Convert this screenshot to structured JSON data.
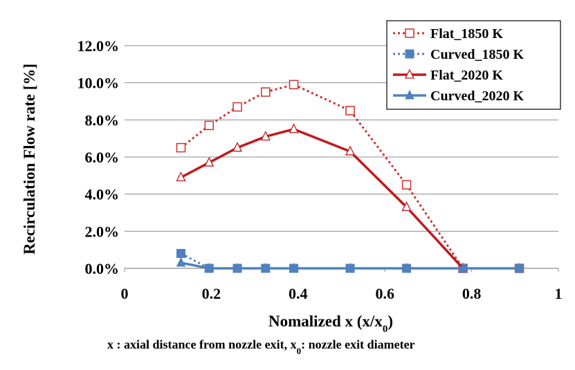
{
  "chart_data": {
    "type": "line",
    "title": "",
    "xlabel": "Nomalized  x (x/x",
    "xlabel_sub": "0",
    "xlabel_suffix": ")",
    "ylabel": "Recirculation  Flow rate  [%]",
    "xlim": [
      0,
      1
    ],
    "ylim": [
      0,
      0.12
    ],
    "x_ticks": [
      0,
      0.2,
      0.4,
      0.6,
      0.8,
      1
    ],
    "x_tick_labels": [
      "0",
      "0.2",
      "0.4",
      "0.6",
      "0.8",
      "1"
    ],
    "y_ticks": [
      0,
      0.02,
      0.04,
      0.06,
      0.08,
      0.1,
      0.12
    ],
    "y_tick_labels": [
      "0.0%",
      "2.0%",
      "4.0%",
      "6.0%",
      "8.0%",
      "10.0%",
      "12.0%"
    ],
    "grid": "horizontal",
    "legend_position": "top-right",
    "series": [
      {
        "name": "Flat_1850 K",
        "color": "#d42d2d",
        "line": "dotted",
        "marker": "open-square",
        "x": [
          0.13,
          0.195,
          0.26,
          0.325,
          0.39,
          0.52,
          0.65,
          0.78,
          0.91
        ],
        "y": [
          0.065,
          0.077,
          0.087,
          0.095,
          0.099,
          0.085,
          0.045,
          0.0,
          0.0
        ]
      },
      {
        "name": "Curved_1850 K",
        "color": "#4f81bd",
        "line": "dotted",
        "marker": "filled-square",
        "x": [
          0.13,
          0.195,
          0.26,
          0.325,
          0.39,
          0.52,
          0.65,
          0.78,
          0.91
        ],
        "y": [
          0.008,
          0.0,
          0.0,
          0.0,
          0.0,
          0.0,
          0.0,
          0.0,
          0.0
        ]
      },
      {
        "name": "Flat_2020 K",
        "color": "#c0191c",
        "line": "solid",
        "marker": "open-triangle",
        "x": [
          0.13,
          0.195,
          0.26,
          0.325,
          0.39,
          0.52,
          0.65,
          0.78
        ],
        "y": [
          0.049,
          0.057,
          0.065,
          0.071,
          0.075,
          0.063,
          0.033,
          0.0
        ]
      },
      {
        "name": "Curved_2020 K",
        "color": "#4f81bd",
        "line": "solid",
        "marker": "filled-triangle",
        "x": [
          0.13,
          0.195,
          0.26,
          0.325,
          0.39,
          0.52,
          0.65,
          0.78,
          0.91
        ],
        "y": [
          0.003,
          0.0,
          0.0,
          0.0,
          0.0,
          0.0,
          0.0,
          0.0,
          0.0
        ]
      }
    ]
  },
  "caption": {
    "prefix": "x : axial distance from nozzle exit, x",
    "sub": "0",
    "suffix": ": nozzle exit diameter"
  }
}
